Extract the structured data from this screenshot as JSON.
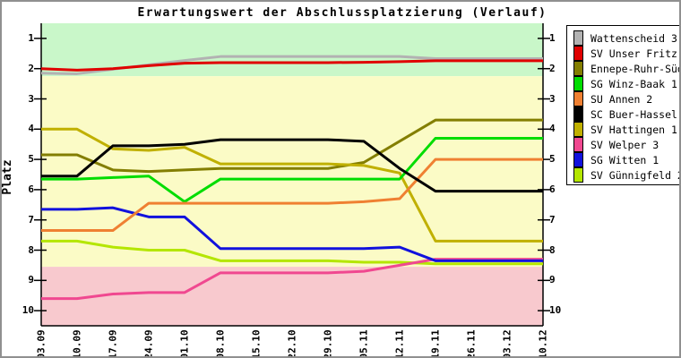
{
  "chart_data": {
    "type": "line",
    "title": "Erwartungswert der Abschlussplatzierung (Verlauf)",
    "ylabel": "Platz",
    "xlabel": "",
    "x_labels": [
      "03.09",
      "10.09",
      "17.09",
      "24.09",
      "01.10",
      "08.10",
      "15.10",
      "22.10",
      "29.10",
      "05.11",
      "12.11",
      "19.11",
      "26.11",
      "03.12",
      "10.12"
    ],
    "yticks": [
      1,
      2,
      3,
      4,
      5,
      6,
      7,
      8,
      9,
      10
    ],
    "ylim": [
      0.5,
      10.5
    ],
    "y_axis_reversed": true,
    "grid": false,
    "legend_position": "right",
    "axis_color": "#000000",
    "bands": [
      {
        "name": "top-zone",
        "from": 0.5,
        "to": 2.25,
        "color": "#c9f7c9"
      },
      {
        "name": "middle-zone",
        "from": 2.25,
        "to": 8.55,
        "color": "#fbfbc6"
      },
      {
        "name": "bottom-zone",
        "from": 8.55,
        "to": 10.5,
        "color": "#f8c9ce"
      }
    ],
    "series": [
      {
        "name": "Wattenscheid 3",
        "color": "#b2b2b2",
        "values": [
          2.15,
          2.17,
          2.02,
          1.87,
          1.73,
          1.6,
          1.6,
          1.6,
          1.6,
          1.6,
          1.6,
          1.67,
          1.67,
          1.67,
          1.67
        ]
      },
      {
        "name": "SV Unser Fritz 2",
        "color": "#e00000",
        "values": [
          2.0,
          2.05,
          2.0,
          1.9,
          1.82,
          1.8,
          1.8,
          1.8,
          1.8,
          1.79,
          1.77,
          1.74,
          1.74,
          1.74,
          1.74
        ]
      },
      {
        "name": "Ennepe-Ruhr-Süd 2",
        "color": "#837e00",
        "values": [
          4.85,
          4.85,
          5.35,
          5.4,
          5.35,
          5.3,
          5.3,
          5.3,
          5.3,
          5.1,
          4.4,
          3.7,
          3.7,
          3.7,
          3.7
        ]
      },
      {
        "name": "SG Winz-Baak 1",
        "color": "#00dd00",
        "values": [
          5.65,
          5.65,
          5.6,
          5.55,
          6.4,
          5.65,
          5.65,
          5.65,
          5.65,
          5.65,
          5.65,
          4.3,
          4.3,
          4.3,
          4.3
        ]
      },
      {
        "name": "SU Annen 2",
        "color": "#ef8032",
        "values": [
          7.35,
          7.35,
          7.35,
          6.45,
          6.45,
          6.45,
          6.45,
          6.45,
          6.45,
          6.4,
          6.3,
          5.0,
          5.0,
          5.0,
          5.0
        ]
      },
      {
        "name": "SC Buer-Hassel 2",
        "color": "#000000",
        "values": [
          5.55,
          5.55,
          4.55,
          4.55,
          4.5,
          4.35,
          4.35,
          4.35,
          4.35,
          4.4,
          5.3,
          6.05,
          6.05,
          6.05,
          6.05
        ]
      },
      {
        "name": "SV Hattingen 1",
        "color": "#c0b000",
        "values": [
          4.0,
          4.0,
          4.65,
          4.7,
          4.6,
          5.15,
          5.15,
          5.15,
          5.15,
          5.2,
          5.45,
          7.7,
          7.7,
          7.7,
          7.7
        ]
      },
      {
        "name": "SV Welper 3",
        "color": "#f04890",
        "values": [
          9.6,
          9.6,
          9.45,
          9.4,
          9.4,
          8.75,
          8.75,
          8.75,
          8.75,
          8.7,
          8.5,
          8.3,
          8.3,
          8.3,
          8.3
        ]
      },
      {
        "name": "SG Witten 1",
        "color": "#1111dd",
        "values": [
          6.65,
          6.65,
          6.6,
          6.9,
          6.9,
          7.95,
          7.95,
          7.95,
          7.95,
          7.95,
          7.9,
          8.35,
          8.35,
          8.35,
          8.35
        ]
      },
      {
        "name": "SV Günnigfeld 2",
        "color": "#b4e600",
        "values": [
          7.7,
          7.7,
          7.9,
          8.0,
          8.0,
          8.35,
          8.35,
          8.35,
          8.35,
          8.4,
          8.4,
          8.45,
          8.45,
          8.45,
          8.45
        ]
      }
    ]
  }
}
